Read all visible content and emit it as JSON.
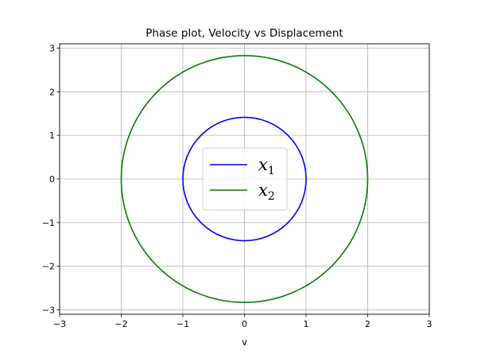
{
  "chart_data": {
    "type": "line",
    "title": "Phase plot, Velocity vs Displacement",
    "xlabel": "v",
    "ylabel": "",
    "xlim": [
      -3,
      3
    ],
    "ylim": [
      -3.1,
      3.1
    ],
    "xticks": [
      -3,
      -2,
      -1,
      0,
      1,
      2,
      3
    ],
    "yticks": [
      -3,
      -2,
      -1,
      0,
      1,
      2,
      3
    ],
    "xtick_labels": [
      "−3",
      "−2",
      "−1",
      "0",
      "1",
      "2",
      "3"
    ],
    "ytick_labels": [
      "−3",
      "−2",
      "−1",
      "0",
      "1",
      "2",
      "3"
    ],
    "grid": true,
    "legend_position": "center",
    "series": [
      {
        "name_base": "x",
        "name_sub": "1",
        "color": "#0000ff",
        "shape": "ellipse",
        "x_radius": 1.0,
        "y_radius": 1.414
      },
      {
        "name_base": "x",
        "name_sub": "2",
        "color": "#008000",
        "shape": "ellipse",
        "x_radius": 2.0,
        "y_radius": 2.828
      }
    ]
  }
}
